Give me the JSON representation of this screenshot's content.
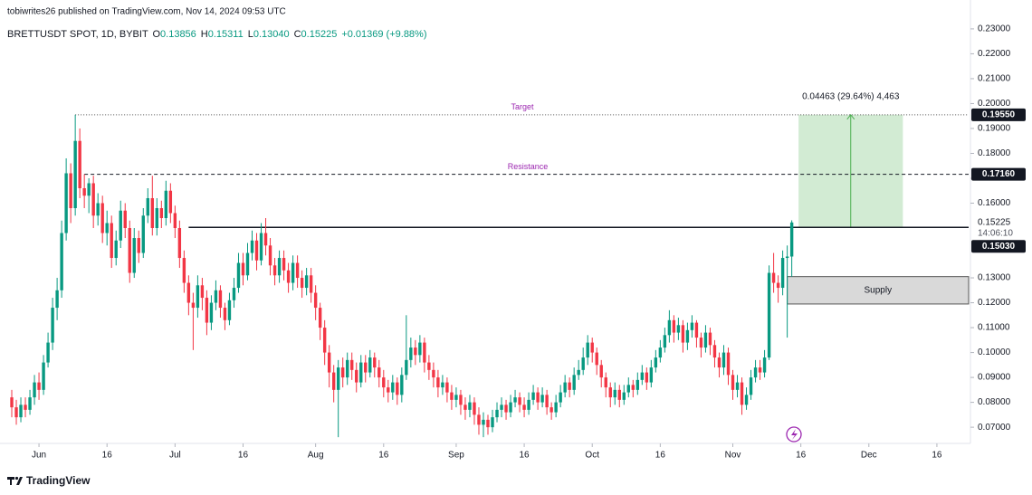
{
  "chart_data": {
    "type": "candlestick",
    "header": "tobiwrites26 published on TradingView.com, Nov 14, 2024 09:53 UTC",
    "symbol": "BRETTUSDT SPOT, 1D, BYBIT",
    "legend_items": [
      [
        "O",
        "0.13856"
      ],
      [
        "H",
        "0.15311"
      ],
      [
        "L",
        "0.13040"
      ],
      [
        "C",
        "0.15225"
      ]
    ],
    "change": "+0.01369 (+9.88%)",
    "up_color": "#089981",
    "down_color": "#f23645",
    "xlim": [
      -1,
      211
    ],
    "ylim": [
      0.0635,
      0.2416
    ],
    "xticks": [
      {
        "value": 6,
        "label": "Jun"
      },
      {
        "value": 21,
        "label": "16"
      },
      {
        "value": 36,
        "label": "Jul"
      },
      {
        "value": 51,
        "label": "16"
      },
      {
        "value": 67,
        "label": "Aug"
      },
      {
        "value": 82,
        "label": "16"
      },
      {
        "value": 98,
        "label": "Sep"
      },
      {
        "value": 113,
        "label": "16"
      },
      {
        "value": 128,
        "label": "Oct"
      },
      {
        "value": 143,
        "label": "16"
      },
      {
        "value": 159,
        "label": "Nov"
      },
      {
        "value": 174,
        "label": "16"
      },
      {
        "value": 189,
        "label": "Dec"
      },
      {
        "value": 204,
        "label": "16"
      }
    ],
    "yticks": [
      {
        "value": 0.07,
        "label": "0.07000"
      },
      {
        "value": 0.08,
        "label": "0.08000"
      },
      {
        "value": 0.09,
        "label": "0.09000"
      },
      {
        "value": 0.1,
        "label": "0.10000"
      },
      {
        "value": 0.11,
        "label": "0.11000"
      },
      {
        "value": 0.12,
        "label": "0.12000"
      },
      {
        "value": 0.13,
        "label": "0.13000"
      },
      {
        "value": 0.16,
        "label": "0.16000"
      },
      {
        "value": 0.17,
        "label": "0.17000"
      },
      {
        "value": 0.18,
        "label": "0.18000"
      },
      {
        "value": 0.19,
        "label": "0.19000"
      },
      {
        "value": 0.2,
        "label": "0.20000"
      },
      {
        "value": 0.21,
        "label": "0.21000"
      },
      {
        "value": 0.22,
        "label": "0.22000"
      },
      {
        "value": 0.23,
        "label": "0.23000"
      }
    ],
    "target": {
      "value": 0.1955,
      "label": "0.19550",
      "name": "Target"
    },
    "resistance": {
      "value": 0.1716,
      "label": "0.17160",
      "name": "Resistance"
    },
    "support": {
      "value": 0.1503,
      "label": "0.15030"
    },
    "last_price": {
      "value": 0.15225,
      "label": "0.15225"
    },
    "countdown": "14:06:10",
    "supply": {
      "name": "Supply",
      "range": [
        0.1195,
        0.1305
      ]
    },
    "measure_label": "0.04463 (29.64%) 4,463",
    "footer": "TradingView",
    "open": [
      0.082,
      0.078,
      0.074,
      0.079,
      0.077,
      0.082,
      0.088,
      0.085,
      0.096,
      0.104,
      0.118,
      0.125,
      0.148,
      0.172,
      0.158,
      0.185,
      0.166,
      0.163,
      0.168,
      0.155,
      0.16,
      0.148,
      0.152,
      0.138,
      0.145,
      0.157,
      0.15,
      0.132,
      0.146,
      0.14,
      0.155,
      0.162,
      0.15,
      0.158,
      0.154,
      0.165,
      0.156,
      0.15,
      0.138,
      0.128,
      0.12,
      0.118,
      0.127,
      0.122,
      0.112,
      0.12,
      0.125,
      0.118,
      0.113,
      0.121,
      0.126,
      0.136,
      0.131,
      0.14,
      0.145,
      0.137,
      0.148,
      0.143,
      0.135,
      0.131,
      0.138,
      0.133,
      0.128,
      0.136,
      0.13,
      0.126,
      0.131,
      0.124,
      0.118,
      0.11,
      0.1,
      0.092,
      0.085,
      0.094,
      0.09,
      0.097,
      0.093,
      0.088,
      0.096,
      0.092,
      0.098,
      0.094,
      0.09,
      0.086,
      0.084,
      0.088,
      0.083,
      0.091,
      0.097,
      0.102,
      0.099,
      0.104,
      0.096,
      0.093,
      0.09,
      0.086,
      0.088,
      0.084,
      0.081,
      0.083,
      0.079,
      0.077,
      0.08,
      0.075,
      0.071,
      0.073,
      0.07,
      0.074,
      0.077,
      0.079,
      0.076,
      0.08,
      0.082,
      0.079,
      0.077,
      0.081,
      0.084,
      0.08,
      0.083,
      0.078,
      0.076,
      0.08,
      0.084,
      0.088,
      0.085,
      0.091,
      0.093,
      0.098,
      0.104,
      0.1,
      0.095,
      0.09,
      0.086,
      0.082,
      0.085,
      0.081,
      0.084,
      0.087,
      0.085,
      0.089,
      0.092,
      0.088,
      0.094,
      0.098,
      0.102,
      0.107,
      0.113,
      0.108,
      0.111,
      0.104,
      0.109,
      0.112,
      0.106,
      0.102,
      0.108,
      0.103,
      0.098,
      0.094,
      0.1,
      0.091,
      0.085,
      0.088,
      0.079,
      0.083,
      0.09,
      0.094,
      0.092,
      0.098,
      0.132,
      0.128,
      0.126,
      0.138,
      0.13856
    ],
    "high": [
      0.085,
      0.081,
      0.082,
      0.082,
      0.085,
      0.091,
      0.092,
      0.099,
      0.108,
      0.122,
      0.13,
      0.153,
      0.178,
      0.176,
      0.1955,
      0.19,
      0.1716,
      0.17,
      0.171,
      0.164,
      0.163,
      0.157,
      0.155,
      0.149,
      0.161,
      0.16,
      0.153,
      0.15,
      0.149,
      0.158,
      0.166,
      0.171,
      0.162,
      0.161,
      0.169,
      0.168,
      0.159,
      0.153,
      0.141,
      0.131,
      0.124,
      0.131,
      0.13,
      0.125,
      0.123,
      0.129,
      0.127,
      0.12,
      0.124,
      0.13,
      0.14,
      0.14,
      0.144,
      0.149,
      0.148,
      0.152,
      0.154,
      0.146,
      0.138,
      0.141,
      0.141,
      0.136,
      0.139,
      0.139,
      0.133,
      0.134,
      0.134,
      0.127,
      0.12,
      0.113,
      0.103,
      0.095,
      0.097,
      0.098,
      0.1,
      0.1,
      0.096,
      0.099,
      0.099,
      0.101,
      0.1,
      0.097,
      0.093,
      0.089,
      0.091,
      0.09,
      0.094,
      0.115,
      0.106,
      0.105,
      0.107,
      0.106,
      0.099,
      0.096,
      0.093,
      0.091,
      0.09,
      0.087,
      0.086,
      0.085,
      0.082,
      0.083,
      0.082,
      0.078,
      0.076,
      0.075,
      0.077,
      0.08,
      0.082,
      0.081,
      0.083,
      0.085,
      0.084,
      0.082,
      0.084,
      0.087,
      0.086,
      0.086,
      0.085,
      0.08,
      0.083,
      0.087,
      0.091,
      0.09,
      0.094,
      0.097,
      0.102,
      0.107,
      0.106,
      0.102,
      0.097,
      0.092,
      0.088,
      0.088,
      0.087,
      0.087,
      0.09,
      0.089,
      0.092,
      0.095,
      0.094,
      0.097,
      0.101,
      0.105,
      0.11,
      0.117,
      0.115,
      0.114,
      0.113,
      0.112,
      0.115,
      0.113,
      0.108,
      0.111,
      0.11,
      0.105,
      0.1,
      0.103,
      0.102,
      0.093,
      0.091,
      0.09,
      0.086,
      0.093,
      0.097,
      0.097,
      0.101,
      0.135,
      0.14,
      0.131,
      0.141,
      0.143,
      0.15311
    ],
    "low": [
      0.074,
      0.071,
      0.072,
      0.074,
      0.075,
      0.079,
      0.081,
      0.083,
      0.094,
      0.101,
      0.113,
      0.122,
      0.145,
      0.152,
      0.155,
      0.162,
      0.158,
      0.156,
      0.15,
      0.151,
      0.144,
      0.143,
      0.134,
      0.135,
      0.142,
      0.146,
      0.128,
      0.13,
      0.136,
      0.138,
      0.152,
      0.147,
      0.147,
      0.15,
      0.151,
      0.152,
      0.146,
      0.134,
      0.124,
      0.115,
      0.101,
      0.114,
      0.117,
      0.107,
      0.109,
      0.117,
      0.114,
      0.109,
      0.111,
      0.118,
      0.124,
      0.127,
      0.129,
      0.137,
      0.133,
      0.135,
      0.139,
      0.131,
      0.127,
      0.128,
      0.129,
      0.124,
      0.125,
      0.126,
      0.122,
      0.123,
      0.12,
      0.113,
      0.105,
      0.095,
      0.086,
      0.08,
      0.066,
      0.086,
      0.087,
      0.089,
      0.084,
      0.086,
      0.088,
      0.09,
      0.09,
      0.086,
      0.082,
      0.08,
      0.081,
      0.079,
      0.08,
      0.089,
      0.094,
      0.095,
      0.096,
      0.092,
      0.089,
      0.086,
      0.082,
      0.083,
      0.08,
      0.077,
      0.078,
      0.075,
      0.073,
      0.074,
      0.071,
      0.067,
      0.066,
      0.067,
      0.068,
      0.072,
      0.074,
      0.073,
      0.074,
      0.078,
      0.076,
      0.074,
      0.075,
      0.079,
      0.077,
      0.078,
      0.075,
      0.073,
      0.074,
      0.078,
      0.082,
      0.082,
      0.083,
      0.089,
      0.091,
      0.095,
      0.096,
      0.091,
      0.086,
      0.082,
      0.078,
      0.079,
      0.078,
      0.079,
      0.082,
      0.082,
      0.083,
      0.087,
      0.085,
      0.086,
      0.092,
      0.096,
      0.1,
      0.104,
      0.104,
      0.105,
      0.1,
      0.101,
      0.106,
      0.102,
      0.098,
      0.1,
      0.099,
      0.094,
      0.09,
      0.091,
      0.087,
      0.081,
      0.082,
      0.075,
      0.077,
      0.081,
      0.088,
      0.089,
      0.09,
      0.097,
      0.124,
      0.12,
      0.123,
      0.106,
      0.1304
    ],
    "close": [
      0.078,
      0.074,
      0.079,
      0.077,
      0.082,
      0.088,
      0.085,
      0.096,
      0.104,
      0.118,
      0.125,
      0.148,
      0.172,
      0.158,
      0.185,
      0.166,
      0.163,
      0.168,
      0.155,
      0.16,
      0.148,
      0.152,
      0.138,
      0.145,
      0.157,
      0.15,
      0.132,
      0.146,
      0.14,
      0.155,
      0.162,
      0.15,
      0.158,
      0.154,
      0.165,
      0.156,
      0.15,
      0.138,
      0.128,
      0.12,
      0.118,
      0.127,
      0.122,
      0.112,
      0.12,
      0.125,
      0.118,
      0.113,
      0.121,
      0.126,
      0.136,
      0.131,
      0.14,
      0.145,
      0.137,
      0.148,
      0.143,
      0.135,
      0.131,
      0.138,
      0.133,
      0.128,
      0.136,
      0.13,
      0.126,
      0.131,
      0.124,
      0.118,
      0.11,
      0.1,
      0.092,
      0.085,
      0.094,
      0.09,
      0.097,
      0.093,
      0.088,
      0.096,
      0.092,
      0.098,
      0.094,
      0.09,
      0.086,
      0.084,
      0.088,
      0.083,
      0.091,
      0.097,
      0.102,
      0.099,
      0.104,
      0.096,
      0.093,
      0.09,
      0.086,
      0.088,
      0.084,
      0.081,
      0.083,
      0.079,
      0.077,
      0.08,
      0.075,
      0.071,
      0.073,
      0.07,
      0.074,
      0.077,
      0.079,
      0.076,
      0.08,
      0.082,
      0.079,
      0.077,
      0.081,
      0.084,
      0.08,
      0.083,
      0.078,
      0.076,
      0.08,
      0.084,
      0.088,
      0.085,
      0.091,
      0.093,
      0.098,
      0.104,
      0.1,
      0.095,
      0.09,
      0.086,
      0.082,
      0.085,
      0.081,
      0.084,
      0.087,
      0.085,
      0.089,
      0.092,
      0.088,
      0.094,
      0.098,
      0.102,
      0.107,
      0.113,
      0.108,
      0.111,
      0.104,
      0.109,
      0.112,
      0.106,
      0.102,
      0.108,
      0.103,
      0.098,
      0.094,
      0.1,
      0.091,
      0.085,
      0.088,
      0.079,
      0.083,
      0.09,
      0.094,
      0.092,
      0.098,
      0.132,
      0.128,
      0.126,
      0.138,
      0.13856,
      0.15225
    ]
  }
}
